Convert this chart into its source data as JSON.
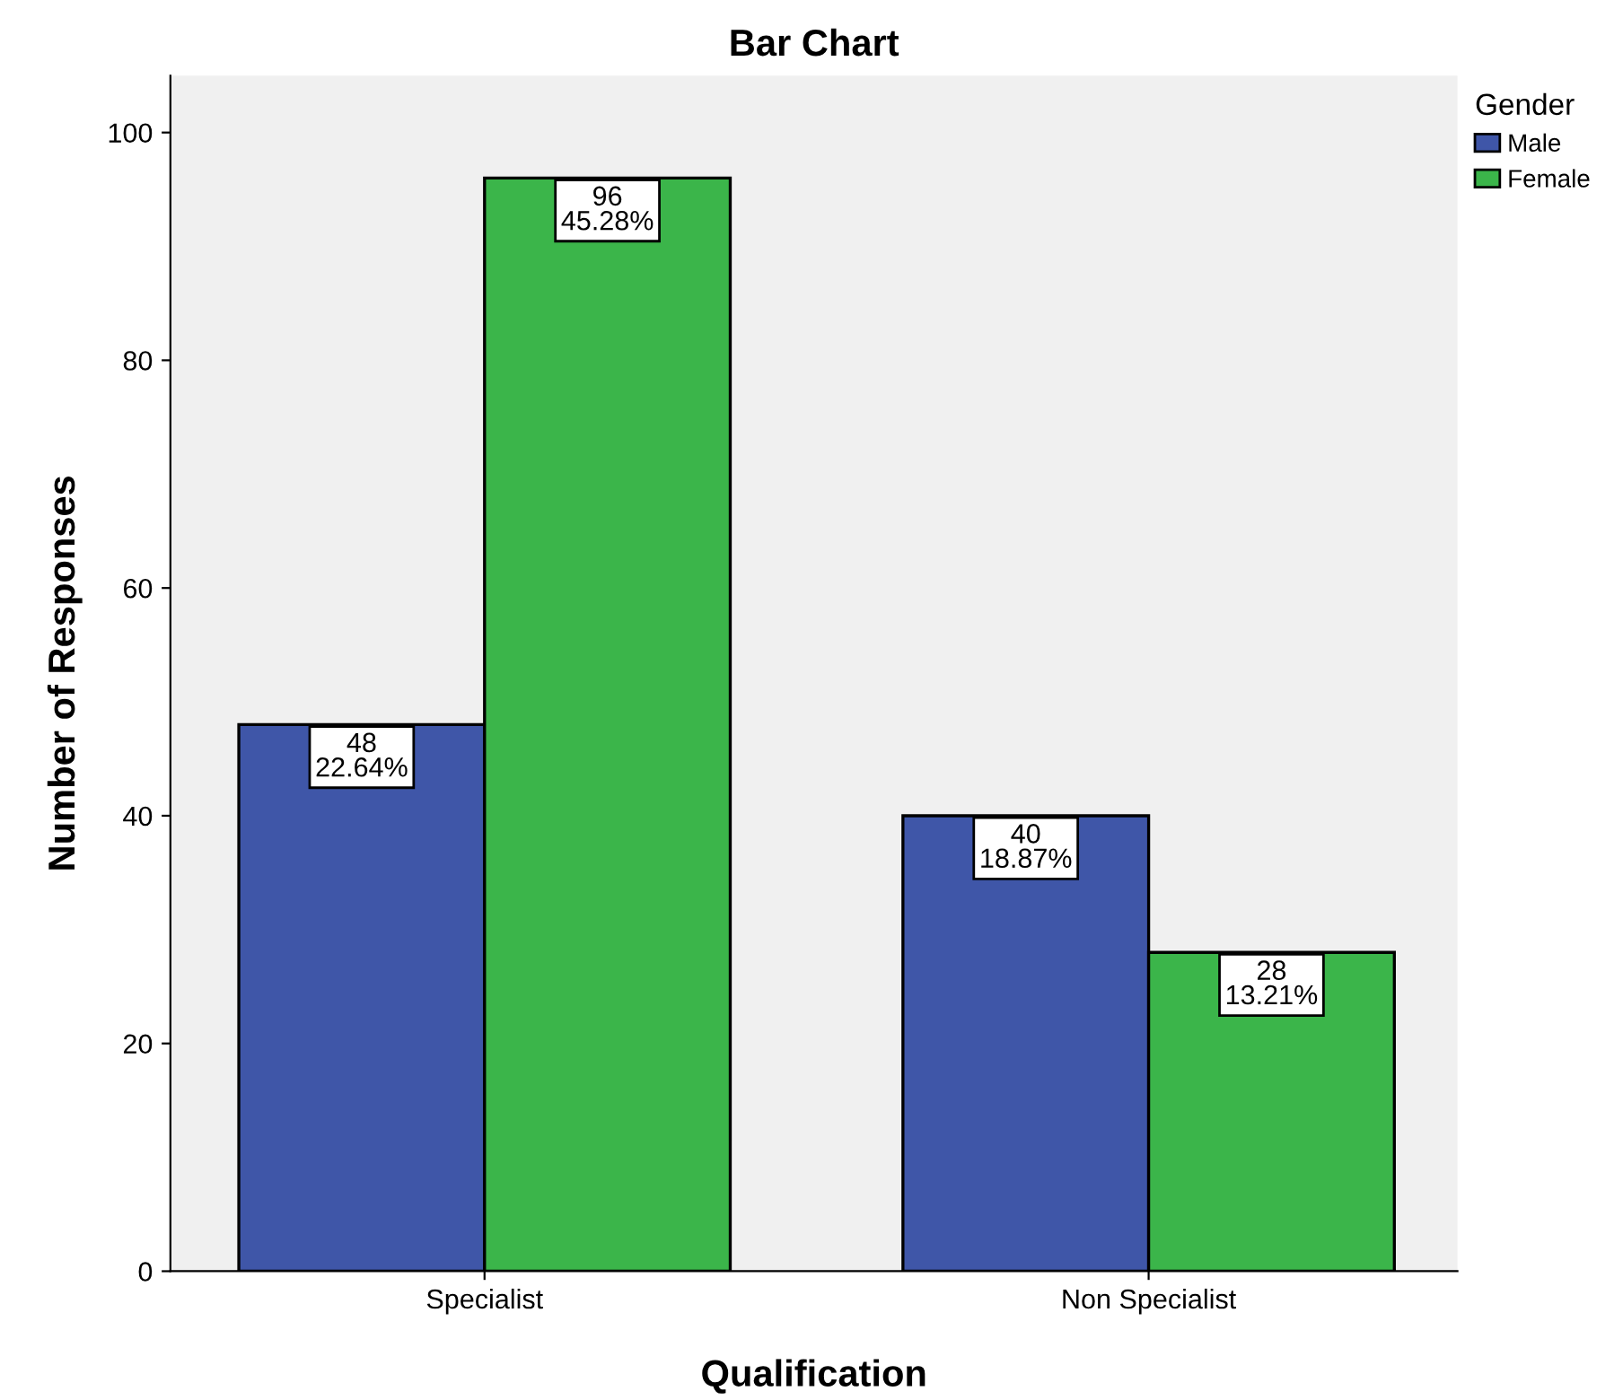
{
  "chart_data": {
    "type": "bar",
    "title": "Bar Chart",
    "xlabel": "Qualification",
    "ylabel": "Number of Responses",
    "categories": [
      "Specialist",
      "Non Specialist"
    ],
    "series": [
      {
        "name": "Male",
        "color": "#3f56a8",
        "values": [
          48,
          40
        ],
        "value_labels": [
          "48\n22.64%",
          "40\n18.87%"
        ]
      },
      {
        "name": "Female",
        "color": "#3bb54a",
        "values": [
          96,
          28
        ],
        "value_labels": [
          "96\n45.28%",
          "28\n13.21%"
        ]
      }
    ],
    "legend_title": "Gender",
    "legend": "top right",
    "grid": false,
    "ylim": [
      0,
      105
    ],
    "yticks": [
      0,
      20,
      40,
      60,
      80,
      100
    ]
  }
}
